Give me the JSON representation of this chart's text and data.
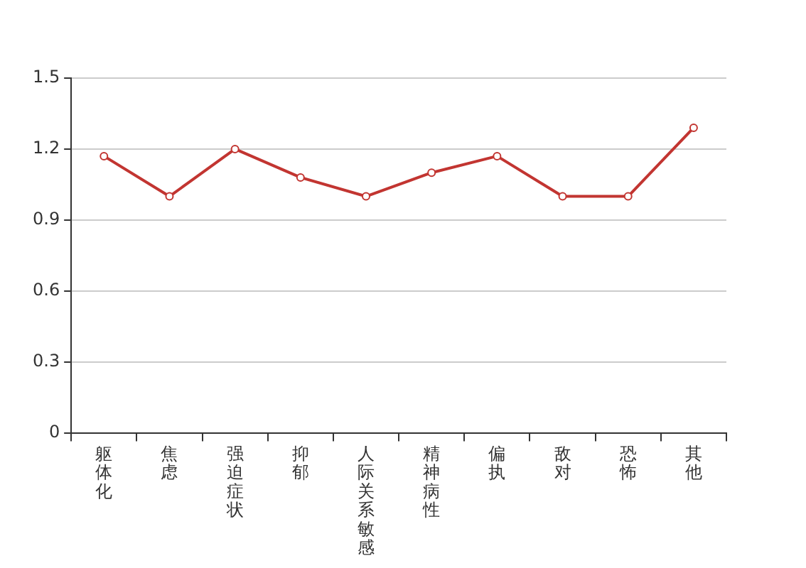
{
  "chart_data": {
    "type": "line",
    "categories": [
      "躯体化",
      "焦虑",
      "强迫症状",
      "抑郁",
      "人际关系敏感",
      "精神病性",
      "偏执",
      "敌对",
      "恐怖",
      "其他"
    ],
    "series": [
      {
        "color": "#c23531",
        "values": [
          1.17,
          1.0,
          1.2,
          1.08,
          1.0,
          1.1,
          1.17,
          1.0,
          1.0,
          1.29
        ]
      }
    ],
    "ylim": [
      0,
      1.5
    ],
    "yticks": [
      0,
      0.3,
      0.6,
      0.9,
      1.2,
      1.5
    ],
    "grid": "y",
    "legend": false,
    "marker": "circle",
    "line_style": "solid"
  }
}
